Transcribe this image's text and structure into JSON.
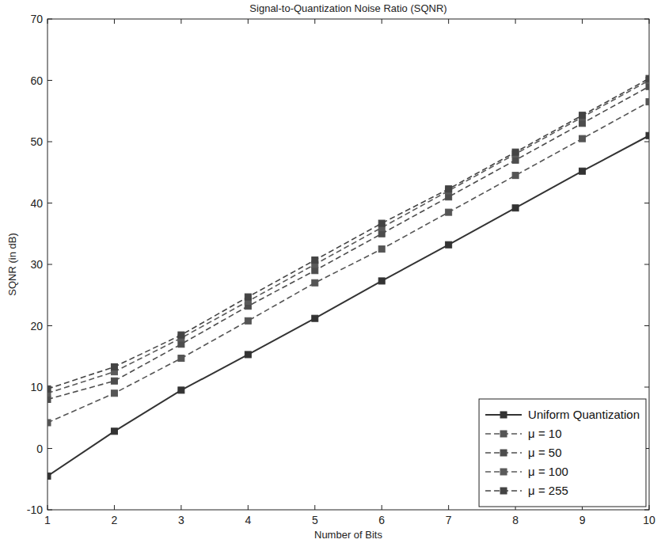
{
  "chart_data": {
    "type": "line",
    "title": "Signal-to-Quantization Noise Ratio (SQNR)",
    "x_label": "Number of Bits",
    "y_label": "SQNR (in dB)",
    "x": [
      1,
      2,
      3,
      4,
      5,
      6,
      7,
      8,
      9,
      10
    ],
    "series": [
      {
        "name": "Uniform Quantization",
        "color": "#333333",
        "line_style": "solid",
        "marker": "square",
        "values": [
          -4.5,
          2.8,
          9.5,
          15.3,
          21.2,
          27.3,
          33.2,
          39.2,
          45.2,
          51.0
        ]
      },
      {
        "name": "μ = 10",
        "color": "#555555",
        "line_style": "dashed",
        "marker": "square",
        "values": [
          4.2,
          9.0,
          14.7,
          20.8,
          27.0,
          32.5,
          38.5,
          44.5,
          50.5,
          56.5
        ]
      },
      {
        "name": "μ = 50",
        "color": "#4d4d4d",
        "line_style": "dashed",
        "marker": "square",
        "values": [
          8.0,
          11.0,
          17.0,
          23.2,
          29.0,
          35.0,
          41.0,
          47.0,
          53.0,
          59.0
        ]
      },
      {
        "name": "μ = 100",
        "color": "#5a5a5a",
        "line_style": "dashed",
        "marker": "square",
        "values": [
          9.0,
          12.5,
          18.0,
          24.0,
          30.0,
          36.0,
          42.0,
          48.0,
          54.0,
          60.0
        ]
      },
      {
        "name": "μ = 255",
        "color": "#444444",
        "line_style": "dashed",
        "marker": "square",
        "values": [
          9.7,
          13.3,
          18.5,
          24.7,
          30.7,
          36.7,
          42.3,
          48.3,
          54.3,
          60.3
        ]
      }
    ],
    "xlim": [
      1,
      10
    ],
    "xticks": [
      1,
      2,
      3,
      4,
      5,
      6,
      7,
      8,
      9,
      10
    ],
    "ylim": [
      -10,
      70
    ],
    "yticks": [
      -10,
      0,
      10,
      20,
      30,
      40,
      50,
      60,
      70
    ],
    "grid": false,
    "legend": "lower right"
  }
}
